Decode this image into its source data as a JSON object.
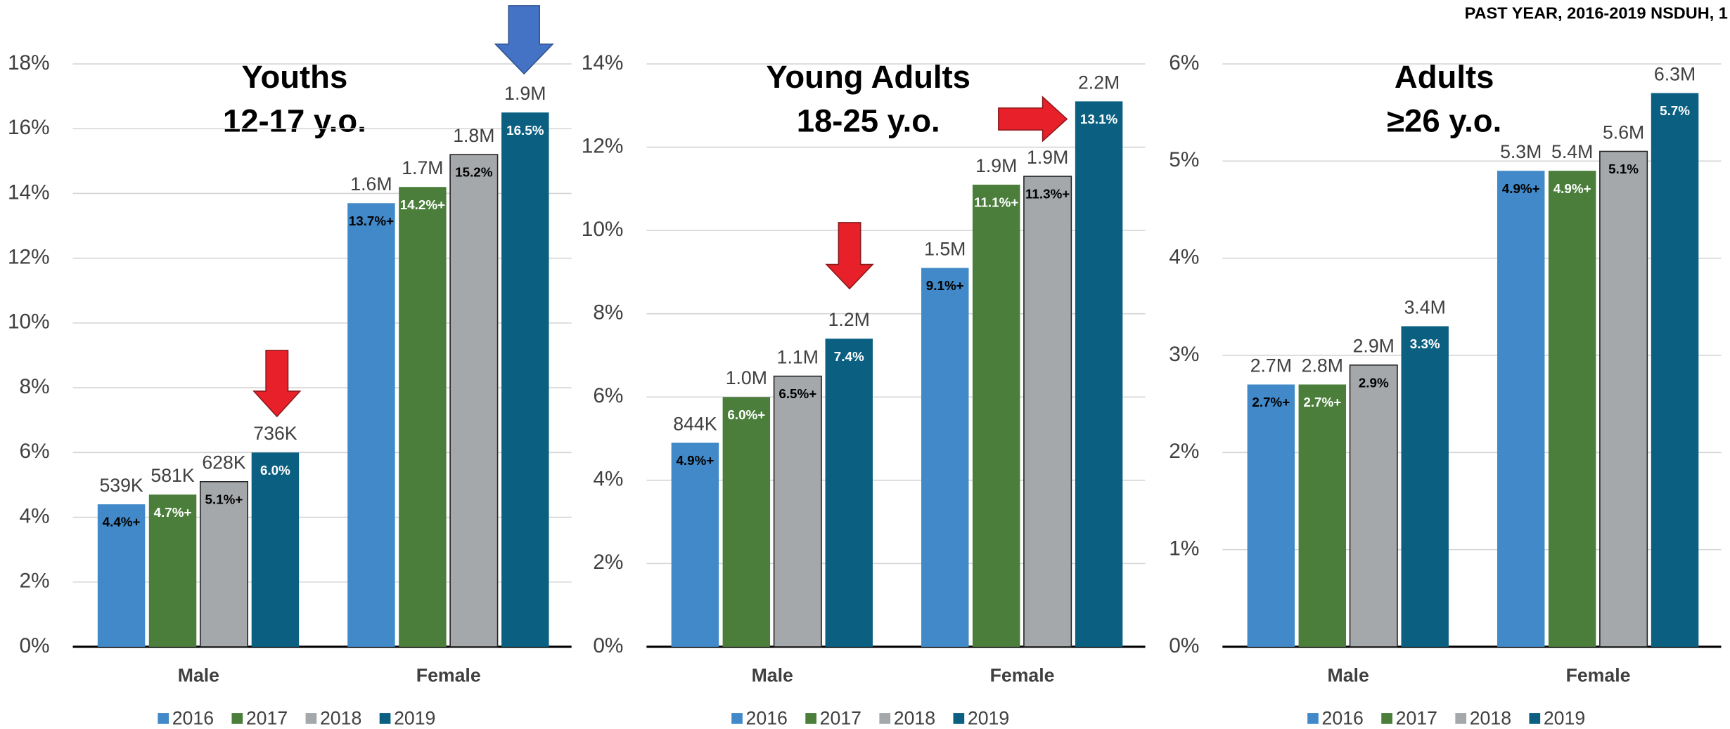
{
  "header": "PAST YEAR, 2016-2019 NSDUH, 1",
  "chart_data": [
    {
      "type": "bar",
      "title": [
        "Youths",
        "12-17 y.o."
      ],
      "categories": [
        "Male",
        "Female"
      ],
      "ylim": [
        0,
        18
      ],
      "grid": true,
      "legend": "bottom",
      "yticks": [
        {
          "value": 0,
          "label": "0%"
        },
        {
          "value": 2,
          "label": "2%"
        },
        {
          "value": 4,
          "label": "4%"
        },
        {
          "value": 6,
          "label": "6%"
        },
        {
          "value": 8,
          "label": "8%"
        },
        {
          "value": 10,
          "label": "10%"
        },
        {
          "value": 12,
          "label": "12%"
        },
        {
          "value": 14,
          "label": "14%"
        },
        {
          "value": 16,
          "label": "16%"
        },
        {
          "value": 18,
          "label": "18%"
        }
      ],
      "series": [
        {
          "name": "2016",
          "color": "#4189c8",
          "label_color": "#000000",
          "values": [
            4.4,
            13.7
          ],
          "value_labels": [
            "4.4%+",
            "13.7%+"
          ],
          "count_labels": [
            "539K",
            "1.6M"
          ]
        },
        {
          "name": "2017",
          "color": "#4a7e3a",
          "label_color": "#ffffff",
          "values": [
            4.7,
            14.2
          ],
          "value_labels": [
            "4.7%+",
            "14.2%+"
          ],
          "count_labels": [
            "581K",
            "1.7M"
          ]
        },
        {
          "name": "2018",
          "color": "#a5a8ab",
          "label_color": "#000000",
          "values": [
            5.1,
            15.2
          ],
          "value_labels": [
            "5.1%+",
            "15.2%"
          ],
          "count_labels": [
            "628K",
            "1.8M"
          ]
        },
        {
          "name": "2019",
          "color": "#0b6082",
          "label_color": "#ffffff",
          "values": [
            6.0,
            16.5
          ],
          "value_labels": [
            "6.0%",
            "16.5%"
          ],
          "count_labels": [
            "736K",
            "1.9M"
          ]
        }
      ]
    },
    {
      "type": "bar",
      "title": [
        "Young Adults",
        "18-25 y.o."
      ],
      "categories": [
        "Male",
        "Female"
      ],
      "ylim": [
        0,
        14
      ],
      "grid": true,
      "legend": "bottom",
      "yticks": [
        {
          "value": 0,
          "label": "0%"
        },
        {
          "value": 2,
          "label": "2%"
        },
        {
          "value": 4,
          "label": "4%"
        },
        {
          "value": 6,
          "label": "6%"
        },
        {
          "value": 8,
          "label": "8%"
        },
        {
          "value": 10,
          "label": "10%"
        },
        {
          "value": 12,
          "label": "12%"
        },
        {
          "value": 14,
          "label": "14%"
        }
      ],
      "series": [
        {
          "name": "2016",
          "color": "#4189c8",
          "label_color": "#000000",
          "values": [
            4.9,
            9.1
          ],
          "value_labels": [
            "4.9%+",
            "9.1%+"
          ],
          "count_labels": [
            "844K",
            "1.5M"
          ]
        },
        {
          "name": "2017",
          "color": "#4a7e3a",
          "label_color": "#ffffff",
          "values": [
            6.0,
            11.1
          ],
          "value_labels": [
            "6.0%+",
            "11.1%+"
          ],
          "count_labels": [
            "1.0M",
            "1.9M"
          ]
        },
        {
          "name": "2018",
          "color": "#a5a8ab",
          "label_color": "#000000",
          "values": [
            6.5,
            11.3
          ],
          "value_labels": [
            "6.5%+",
            "11.3%+"
          ],
          "count_labels": [
            "1.1M",
            "1.9M"
          ]
        },
        {
          "name": "2019",
          "color": "#0b6082",
          "label_color": "#ffffff",
          "values": [
            7.4,
            13.1
          ],
          "value_labels": [
            "7.4%",
            "13.1%"
          ],
          "count_labels": [
            "1.2M",
            "2.2M"
          ]
        }
      ]
    },
    {
      "type": "bar",
      "title": [
        "Adults",
        "≥26 y.o."
      ],
      "categories": [
        "Male",
        "Female"
      ],
      "ylim": [
        0,
        6
      ],
      "grid": true,
      "legend": "bottom",
      "yticks": [
        {
          "value": 0,
          "label": "0%"
        },
        {
          "value": 1,
          "label": "1%"
        },
        {
          "value": 2,
          "label": "2%"
        },
        {
          "value": 3,
          "label": "3%"
        },
        {
          "value": 4,
          "label": "4%"
        },
        {
          "value": 5,
          "label": "5%"
        },
        {
          "value": 6,
          "label": "6%"
        }
      ],
      "series": [
        {
          "name": "2016",
          "color": "#4189c8",
          "label_color": "#000000",
          "values": [
            2.7,
            4.9
          ],
          "value_labels": [
            "2.7%+",
            "4.9%+"
          ],
          "count_labels": [
            "2.7M",
            "5.3M"
          ]
        },
        {
          "name": "2017",
          "color": "#4a7e3a",
          "label_color": "#ffffff",
          "values": [
            2.7,
            4.9
          ],
          "value_labels": [
            "2.7%+",
            "4.9%+"
          ],
          "count_labels": [
            "2.8M",
            "5.4M"
          ]
        },
        {
          "name": "2018",
          "color": "#a5a8ab",
          "label_color": "#000000",
          "values": [
            2.9,
            5.1
          ],
          "value_labels": [
            "2.9%",
            "5.1%"
          ],
          "count_labels": [
            "2.9M",
            "5.6M"
          ]
        },
        {
          "name": "2019",
          "color": "#0b6082",
          "label_color": "#ffffff",
          "values": [
            3.3,
            5.7
          ],
          "value_labels": [
            "3.3%",
            "5.7%"
          ],
          "count_labels": [
            "3.4M",
            "6.3M"
          ]
        }
      ]
    }
  ]
}
